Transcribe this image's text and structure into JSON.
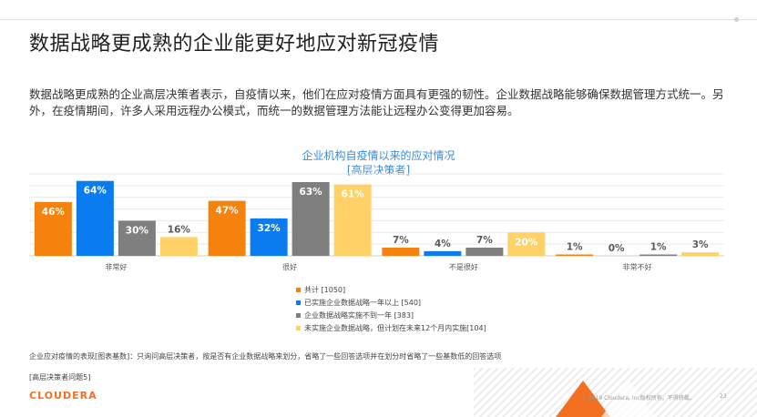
{
  "title": "数据战略更成熟的企业能更好地应对新冠疫情",
  "body_text": "数据战略更成熟的企业高层决策者表示，自疫情以来，他们在应对疫情方面具有更强的韧性。企业数据战略能够确保数据管理方式统一。另外，在疫情期间，许多人采用远程办公模式，而统一的数据管理方法能让远程办公变得更加容易。",
  "chart_data": {
    "type": "bar",
    "title": "企业机构自疫情以来的应对情况",
    "subtitle": "[高层决策者]",
    "categories": [
      "非常好",
      "很好",
      "不是很好",
      "非常不好"
    ],
    "series": [
      {
        "name": "共计 [1050]",
        "color": "#f5820d",
        "values": [
          46,
          47,
          7,
          1
        ]
      },
      {
        "name": "已实施企业数据战略一年以上 [540]",
        "color": "#0a7cf0",
        "values": [
          64,
          32,
          4,
          0
        ]
      },
      {
        "name": "企业数据战略实施不到一年 [383]",
        "color": "#7f7f7f",
        "values": [
          30,
          63,
          7,
          1
        ]
      },
      {
        "name": "未实施企业数据战略，但计划在未来12个月内实施[104]",
        "color": "#ffd166",
        "values": [
          16,
          61,
          20,
          3
        ]
      }
    ],
    "data_labels": [
      [
        "46%",
        "64%",
        "30%",
        "16%"
      ],
      [
        "47%",
        "32%",
        "63%",
        "61%"
      ],
      [
        "7%",
        "4%",
        "7%",
        "20%"
      ],
      [
        "1%",
        "0%",
        "1%",
        "3%"
      ]
    ],
    "ylim": [
      0,
      70
    ],
    "grid": true,
    "legend_position": "bottom-center"
  },
  "footnote1": "企业应对疫情的表现[图表基数]：只询问高层决策者，按是否有企业数据战略来划分，省略了一些回答选项并在划分时省略了一些基数低的回答选项",
  "footnote2": "[高层决策者问题5]",
  "logo_text": "CLOUDERA",
  "copyright": "© 2019 Cloudera, Inc版权所有。不得转载。",
  "page_number": "23"
}
